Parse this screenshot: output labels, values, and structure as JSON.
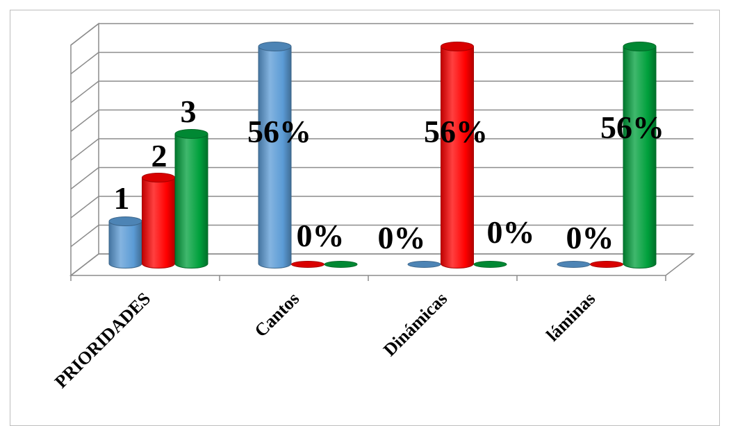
{
  "chart_data": {
    "type": "bar",
    "style": "3d-cylinder",
    "categories": [
      "PRIORIDADES",
      "Cantos",
      "Dinámicas",
      "láminas"
    ],
    "series": [
      {
        "values": [
          1,
          56,
          0,
          0
        ],
        "labels": [
          "1",
          "56%",
          "0%",
          "0%"
        ]
      },
      {
        "values": [
          2,
          0,
          56,
          0
        ],
        "labels": [
          "2",
          "0%",
          "56%",
          "0%"
        ]
      },
      {
        "values": [
          3,
          0,
          0,
          56
        ],
        "labels": [
          "3",
          "0%",
          "0%",
          "56%"
        ]
      }
    ],
    "colors": [
      "#5B9BD5",
      "#FF0000",
      "#00A03C"
    ],
    "grid": true,
    "legend": "none",
    "ylim": [
      0,
      56
    ]
  }
}
